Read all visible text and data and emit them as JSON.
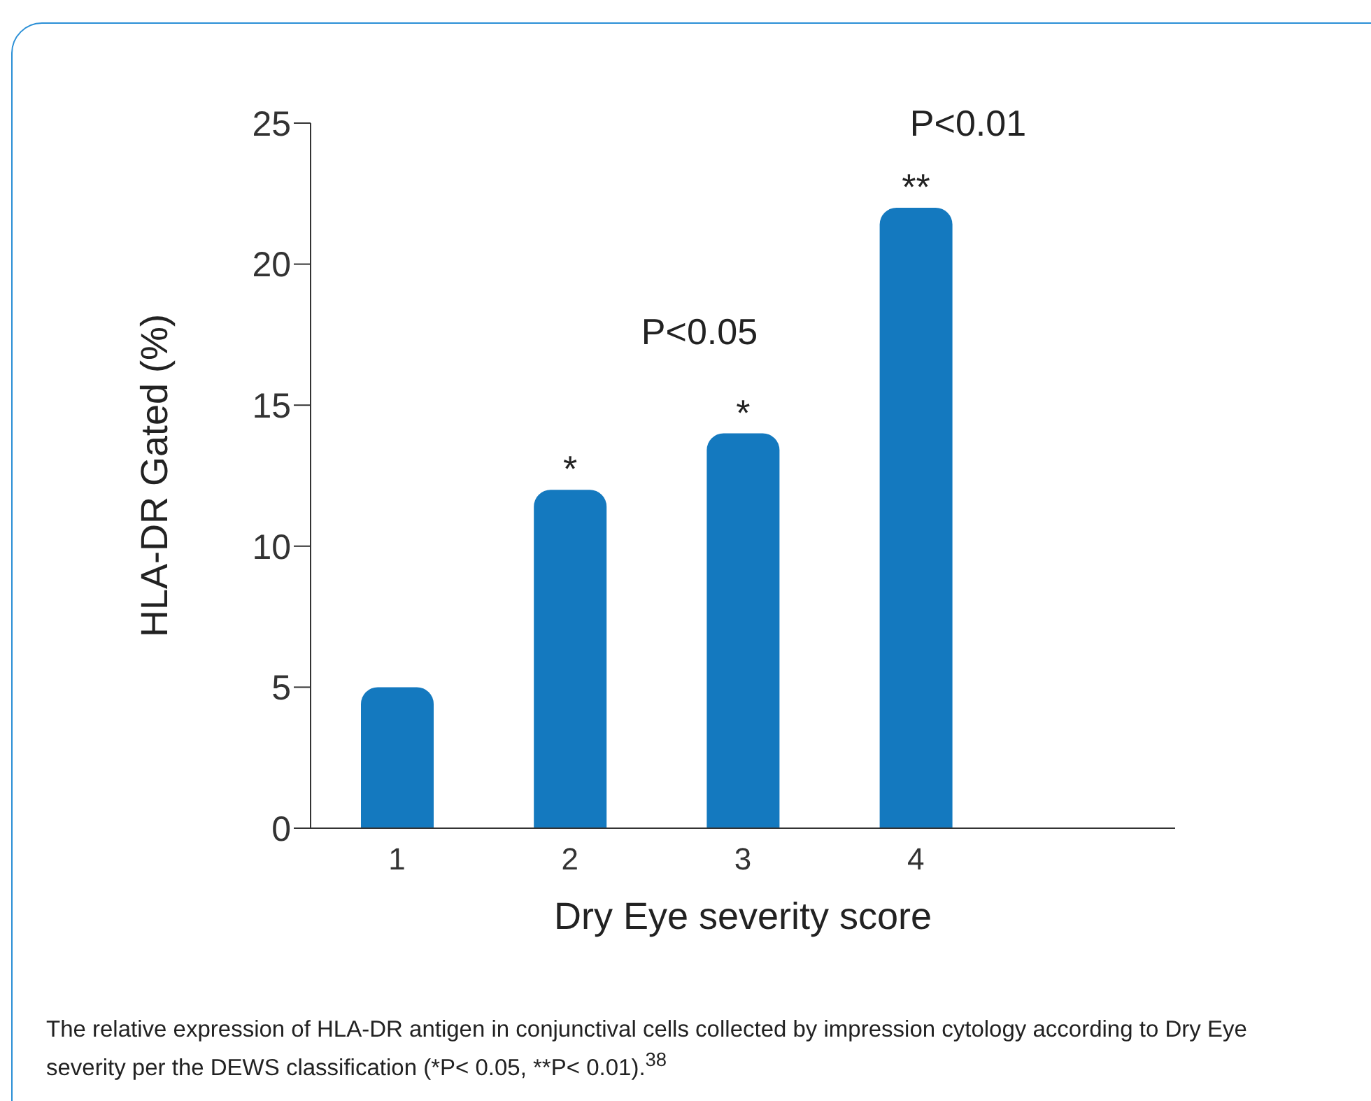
{
  "chart_data": {
    "type": "bar",
    "xlabel": "Dry Eye severity score",
    "ylabel": "HLA-DR Gated (%)",
    "categories": [
      "1",
      "2",
      "3",
      "4",
      null
    ],
    "values": [
      5,
      12,
      14,
      22,
      null
    ],
    "value_labels": [
      null,
      "*",
      "*",
      "**",
      null
    ],
    "color": "#1479bf",
    "ylim": [
      0,
      25
    ],
    "yticks": [
      0,
      5,
      10,
      15,
      20,
      25
    ],
    "grid": false,
    "legend": false,
    "annotations": [
      "P<0.05",
      "P<0.01",
      "The relative expression of HLA-DR antigen in conjunctival cells collected by impression cytology according to Dry Eye severity per the DEWS classification (*P< 0.05, **P< 0.01).$^{38}$"
    ]
  }
}
